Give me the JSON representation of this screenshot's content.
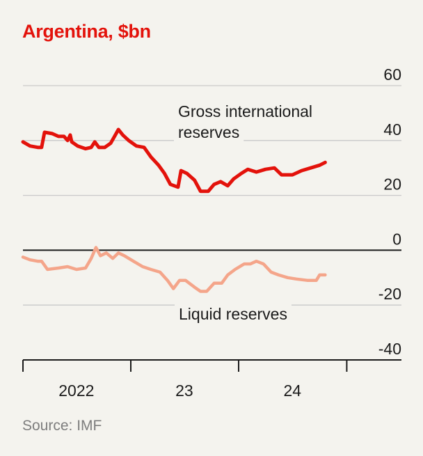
{
  "title": "Argentina, $bn",
  "source": "Source: IMF",
  "colors": {
    "gross": "#e3120b",
    "liquid": "#f4a58a",
    "grid": "#c9c9c9",
    "zero": "#1a1a1a",
    "title": "#e3120b"
  },
  "chart_data": {
    "type": "line",
    "title": "Argentina, $bn",
    "ylim": [
      -40,
      60
    ],
    "yticks": [
      60,
      40,
      20,
      0,
      -20,
      -40
    ],
    "xlim": [
      "2022-01-01",
      "2024-12-31"
    ],
    "xticks": [
      {
        "label": "2022",
        "date": "2022-07-01"
      },
      {
        "label": "23",
        "date": "2023-07-01"
      },
      {
        "label": "24",
        "date": "2024-07-01"
      }
    ],
    "year_boundaries": [
      "2022-01-01",
      "2023-01-01",
      "2024-01-01",
      "2025-01-01"
    ],
    "grid": true,
    "series": [
      {
        "name": "Gross international reserves",
        "label_lines": [
          "Gross international",
          "reserves"
        ],
        "points": [
          [
            "2022-01-01",
            39.5
          ],
          [
            "2022-01-25",
            38
          ],
          [
            "2022-02-20",
            37.5
          ],
          [
            "2022-03-05",
            37.5
          ],
          [
            "2022-03-15",
            43
          ],
          [
            "2022-04-10",
            42.5
          ],
          [
            "2022-05-01",
            41.5
          ],
          [
            "2022-05-20",
            41.5
          ],
          [
            "2022-06-01",
            40
          ],
          [
            "2022-06-10",
            42
          ],
          [
            "2022-06-15",
            39.5
          ],
          [
            "2022-07-05",
            38
          ],
          [
            "2022-08-01",
            37
          ],
          [
            "2022-08-20",
            37.5
          ],
          [
            "2022-09-01",
            39.5
          ],
          [
            "2022-09-15",
            37.5
          ],
          [
            "2022-10-05",
            37.5
          ],
          [
            "2022-10-25",
            39
          ],
          [
            "2022-11-20",
            44
          ],
          [
            "2022-12-05",
            42
          ],
          [
            "2022-12-25",
            40
          ],
          [
            "2023-01-20",
            38
          ],
          [
            "2023-02-15",
            37.5
          ],
          [
            "2023-03-10",
            34
          ],
          [
            "2023-04-05",
            31
          ],
          [
            "2023-04-25",
            28
          ],
          [
            "2023-05-15",
            24
          ],
          [
            "2023-06-10",
            23
          ],
          [
            "2023-06-20",
            29
          ],
          [
            "2023-07-10",
            28
          ],
          [
            "2023-08-05",
            25.5
          ],
          [
            "2023-08-25",
            21.5
          ],
          [
            "2023-09-20",
            21.5
          ],
          [
            "2023-10-10",
            24
          ],
          [
            "2023-11-01",
            25
          ],
          [
            "2023-11-25",
            23.5
          ],
          [
            "2023-12-15",
            26
          ],
          [
            "2024-01-10",
            28
          ],
          [
            "2024-02-01",
            29.5
          ],
          [
            "2024-03-01",
            28.5
          ],
          [
            "2024-04-01",
            29.5
          ],
          [
            "2024-05-01",
            30
          ],
          [
            "2024-05-25",
            27.5
          ],
          [
            "2024-07-01",
            27.5
          ],
          [
            "2024-08-01",
            29
          ],
          [
            "2024-09-01",
            30
          ],
          [
            "2024-10-01",
            31
          ],
          [
            "2024-10-20",
            32
          ]
        ]
      },
      {
        "name": "Liquid reserves",
        "label_lines": [
          "Liquid reserves"
        ],
        "points": [
          [
            "2022-01-01",
            -2.5
          ],
          [
            "2022-01-25",
            -3.5
          ],
          [
            "2022-02-20",
            -4
          ],
          [
            "2022-03-05",
            -4
          ],
          [
            "2022-03-25",
            -7
          ],
          [
            "2022-05-01",
            -6.5
          ],
          [
            "2022-06-01",
            -6
          ],
          [
            "2022-07-01",
            -7
          ],
          [
            "2022-08-01",
            -6.5
          ],
          [
            "2022-08-20",
            -3
          ],
          [
            "2022-09-05",
            1
          ],
          [
            "2022-09-20",
            -2
          ],
          [
            "2022-10-10",
            -1
          ],
          [
            "2022-11-01",
            -3
          ],
          [
            "2022-11-20",
            -1
          ],
          [
            "2022-12-10",
            -2
          ],
          [
            "2023-01-10",
            -4
          ],
          [
            "2023-02-10",
            -6
          ],
          [
            "2023-03-10",
            -7
          ],
          [
            "2023-04-10",
            -8
          ],
          [
            "2023-05-05",
            -11
          ],
          [
            "2023-05-25",
            -14
          ],
          [
            "2023-06-15",
            -11
          ],
          [
            "2023-07-05",
            -11
          ],
          [
            "2023-08-05",
            -13.5
          ],
          [
            "2023-08-25",
            -15
          ],
          [
            "2023-09-15",
            -15
          ],
          [
            "2023-10-10",
            -12
          ],
          [
            "2023-11-05",
            -12
          ],
          [
            "2023-11-25",
            -9
          ],
          [
            "2023-12-20",
            -7
          ],
          [
            "2024-01-20",
            -5
          ],
          [
            "2024-02-10",
            -5
          ],
          [
            "2024-03-01",
            -4
          ],
          [
            "2024-03-25",
            -5
          ],
          [
            "2024-04-20",
            -8
          ],
          [
            "2024-05-15",
            -9
          ],
          [
            "2024-06-15",
            -10
          ],
          [
            "2024-07-15",
            -10.5
          ],
          [
            "2024-08-20",
            -11
          ],
          [
            "2024-09-20",
            -11
          ],
          [
            "2024-10-01",
            -9
          ],
          [
            "2024-10-20",
            -9
          ]
        ]
      }
    ]
  }
}
